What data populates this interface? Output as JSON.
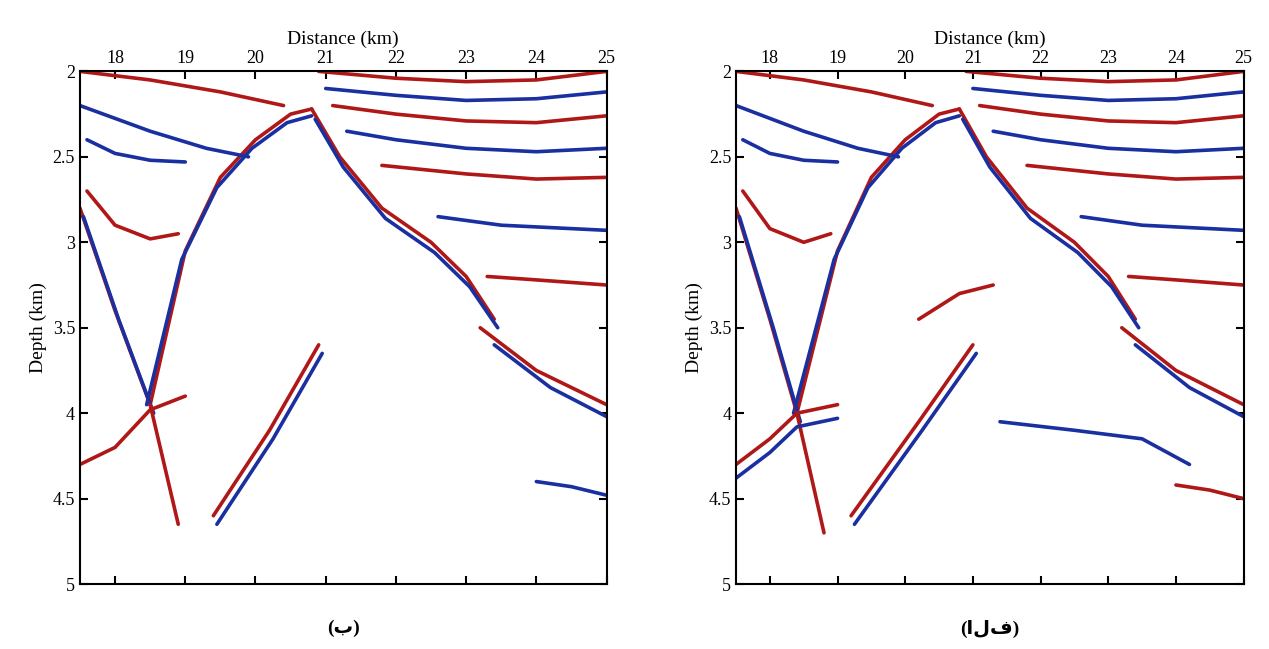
{
  "chart_data": [
    {
      "type": "line",
      "title": "(ب)",
      "xlabel": "Distance (km)",
      "ylabel": "Depth (km)",
      "xlim": [
        17.5,
        25
      ],
      "ylim": [
        5,
        2
      ],
      "xticks": [
        18,
        19,
        20,
        21,
        22,
        23,
        24,
        25
      ],
      "yticks": [
        2,
        2.5,
        3,
        3.5,
        4,
        4.5,
        5
      ],
      "series": [
        {
          "color": "#b01818",
          "x": [
            18.5,
            19.0,
            19.5,
            20.0,
            20.5,
            20.8
          ],
          "values": [
            3.95,
            3.05,
            2.62,
            2.4,
            2.25,
            2.22
          ]
        },
        {
          "color": "#1a2fa0",
          "x": [
            18.45,
            18.95,
            19.45,
            19.95,
            20.45,
            20.8
          ],
          "values": [
            3.95,
            3.1,
            2.68,
            2.45,
            2.3,
            2.26
          ]
        },
        {
          "color": "#b01818",
          "x": [
            20.8,
            21.2,
            21.8,
            22.5,
            23.0,
            23.4
          ],
          "values": [
            2.22,
            2.5,
            2.8,
            3.0,
            3.2,
            3.45
          ]
        },
        {
          "color": "#1a2fa0",
          "x": [
            20.85,
            21.25,
            21.85,
            22.55,
            23.05,
            23.45
          ],
          "values": [
            2.28,
            2.56,
            2.86,
            3.06,
            3.26,
            3.5
          ]
        },
        {
          "color": "#b01818",
          "x": [
            20.9,
            22.0,
            23.0,
            24.0,
            25.0
          ],
          "values": [
            2.0,
            2.04,
            2.06,
            2.05,
            2.0
          ]
        },
        {
          "color": "#1a2fa0",
          "x": [
            21.0,
            22.0,
            23.0,
            24.0,
            25.0
          ],
          "values": [
            2.1,
            2.14,
            2.17,
            2.16,
            2.12
          ]
        },
        {
          "color": "#b01818",
          "x": [
            21.1,
            22.0,
            23.0,
            24.0,
            25.0
          ],
          "values": [
            2.2,
            2.25,
            2.29,
            2.3,
            2.26
          ]
        },
        {
          "color": "#1a2fa0",
          "x": [
            21.3,
            22.0,
            23.0,
            24.0,
            25.0
          ],
          "values": [
            2.35,
            2.4,
            2.45,
            2.47,
            2.45
          ]
        },
        {
          "color": "#b01818",
          "x": [
            21.8,
            23.0,
            24.0,
            25.0
          ],
          "values": [
            2.55,
            2.6,
            2.63,
            2.62
          ]
        },
        {
          "color": "#1a2fa0",
          "x": [
            22.6,
            23.5,
            25.0
          ],
          "values": [
            2.85,
            2.9,
            2.93
          ]
        },
        {
          "color": "#b01818",
          "x": [
            23.3,
            24.0,
            25.0
          ],
          "values": [
            3.2,
            3.22,
            3.25
          ]
        },
        {
          "color": "#b01818",
          "x": [
            17.5,
            18.5,
            19.5,
            20.4
          ],
          "values": [
            2.0,
            2.05,
            2.12,
            2.2
          ]
        },
        {
          "color": "#1a2fa0",
          "x": [
            17.5,
            18.5,
            19.3,
            19.9
          ],
          "values": [
            2.2,
            2.35,
            2.45,
            2.5
          ]
        },
        {
          "color": "#1a2fa0",
          "x": [
            17.6,
            18.0,
            18.5,
            19.0
          ],
          "values": [
            2.4,
            2.48,
            2.52,
            2.53
          ]
        },
        {
          "color": "#b01818",
          "x": [
            17.6,
            18.0,
            18.5,
            18.9
          ],
          "values": [
            2.7,
            2.9,
            2.98,
            2.95
          ]
        },
        {
          "color": "#b01818",
          "x": [
            17.5,
            18.0,
            18.5
          ],
          "values": [
            2.8,
            3.4,
            3.95
          ]
        },
        {
          "color": "#1a2fa0",
          "x": [
            17.55,
            18.05,
            18.55
          ],
          "values": [
            2.85,
            3.45,
            4.0
          ]
        },
        {
          "color": "#b01818",
          "x": [
            18.5,
            18.7,
            18.9
          ],
          "values": [
            3.95,
            4.3,
            4.65
          ]
        },
        {
          "color": "#b01818",
          "x": [
            17.5,
            18.0,
            18.5,
            19.0
          ],
          "values": [
            4.3,
            4.2,
            3.98,
            3.9
          ]
        },
        {
          "color": "#b01818",
          "x": [
            19.4,
            20.2,
            20.9
          ],
          "values": [
            4.6,
            4.1,
            3.6
          ]
        },
        {
          "color": "#1a2fa0",
          "x": [
            19.45,
            20.25,
            20.95
          ],
          "values": [
            4.65,
            4.15,
            3.65
          ]
        },
        {
          "color": "#b01818",
          "x": [
            23.2,
            24.0,
            25.0
          ],
          "values": [
            3.5,
            3.75,
            3.95
          ]
        },
        {
          "color": "#1a2fa0",
          "x": [
            23.4,
            24.2,
            25.0
          ],
          "values": [
            3.6,
            3.85,
            4.02
          ]
        },
        {
          "color": "#1a2fa0",
          "x": [
            24.0,
            24.5,
            25.0
          ],
          "values": [
            4.4,
            4.43,
            4.48
          ]
        }
      ]
    },
    {
      "type": "line",
      "title": "(الف)",
      "xlabel": "Distance (km)",
      "ylabel": "Depth (km)",
      "xlim": [
        17.5,
        25
      ],
      "ylim": [
        5,
        2
      ],
      "xticks": [
        18,
        19,
        20,
        21,
        22,
        23,
        24,
        25
      ],
      "yticks": [
        2,
        2.5,
        3,
        3.5,
        4,
        4.5,
        5
      ],
      "series": [
        {
          "color": "#b01818",
          "x": [
            18.4,
            19.0,
            19.5,
            20.0,
            20.5,
            20.8
          ],
          "values": [
            4.0,
            3.05,
            2.62,
            2.4,
            2.25,
            2.22
          ]
        },
        {
          "color": "#1a2fa0",
          "x": [
            18.35,
            18.95,
            19.45,
            19.95,
            20.45,
            20.8
          ],
          "values": [
            4.0,
            3.1,
            2.68,
            2.45,
            2.3,
            2.26
          ]
        },
        {
          "color": "#b01818",
          "x": [
            20.8,
            21.2,
            21.8,
            22.5,
            23.0,
            23.4
          ],
          "values": [
            2.22,
            2.5,
            2.8,
            3.0,
            3.2,
            3.45
          ]
        },
        {
          "color": "#1a2fa0",
          "x": [
            20.85,
            21.25,
            21.85,
            22.55,
            23.05,
            23.45
          ],
          "values": [
            2.28,
            2.56,
            2.86,
            3.06,
            3.26,
            3.5
          ]
        },
        {
          "color": "#b01818",
          "x": [
            20.9,
            22.0,
            23.0,
            24.0,
            25.0
          ],
          "values": [
            2.0,
            2.04,
            2.06,
            2.05,
            2.0
          ]
        },
        {
          "color": "#1a2fa0",
          "x": [
            21.0,
            22.0,
            23.0,
            24.0,
            25.0
          ],
          "values": [
            2.1,
            2.14,
            2.17,
            2.16,
            2.12
          ]
        },
        {
          "color": "#b01818",
          "x": [
            21.1,
            22.0,
            23.0,
            24.0,
            25.0
          ],
          "values": [
            2.2,
            2.25,
            2.29,
            2.3,
            2.26
          ]
        },
        {
          "color": "#1a2fa0",
          "x": [
            21.3,
            22.0,
            23.0,
            24.0,
            25.0
          ],
          "values": [
            2.35,
            2.4,
            2.45,
            2.47,
            2.45
          ]
        },
        {
          "color": "#b01818",
          "x": [
            21.8,
            23.0,
            24.0,
            25.0
          ],
          "values": [
            2.55,
            2.6,
            2.63,
            2.62
          ]
        },
        {
          "color": "#1a2fa0",
          "x": [
            22.6,
            23.5,
            25.0
          ],
          "values": [
            2.85,
            2.9,
            2.93
          ]
        },
        {
          "color": "#b01818",
          "x": [
            23.3,
            24.0,
            25.0
          ],
          "values": [
            3.2,
            3.22,
            3.25
          ]
        },
        {
          "color": "#b01818",
          "x": [
            17.5,
            18.5,
            19.5,
            20.4
          ],
          "values": [
            2.0,
            2.05,
            2.12,
            2.2
          ]
        },
        {
          "color": "#1a2fa0",
          "x": [
            17.5,
            18.5,
            19.3,
            19.9
          ],
          "values": [
            2.2,
            2.35,
            2.45,
            2.5
          ]
        },
        {
          "color": "#1a2fa0",
          "x": [
            17.6,
            18.0,
            18.5,
            19.0
          ],
          "values": [
            2.4,
            2.48,
            2.52,
            2.53
          ]
        },
        {
          "color": "#b01818",
          "x": [
            17.6,
            18.0,
            18.5,
            18.9
          ],
          "values": [
            2.7,
            2.92,
            3.0,
            2.95
          ]
        },
        {
          "color": "#b01818",
          "x": [
            17.5,
            18.0,
            18.4
          ],
          "values": [
            2.8,
            3.45,
            4.0
          ]
        },
        {
          "color": "#1a2fa0",
          "x": [
            17.55,
            18.05,
            18.45
          ],
          "values": [
            2.85,
            3.5,
            4.05
          ]
        },
        {
          "color": "#b01818",
          "x": [
            18.4,
            18.6,
            18.8
          ],
          "values": [
            4.0,
            4.35,
            4.7
          ]
        },
        {
          "color": "#b01818",
          "x": [
            17.5,
            18.0,
            18.4,
            19.0
          ],
          "values": [
            4.3,
            4.15,
            4.0,
            3.95
          ]
        },
        {
          "color": "#1a2fa0",
          "x": [
            17.5,
            18.0,
            18.4,
            19.0
          ],
          "values": [
            4.38,
            4.23,
            4.08,
            4.03
          ]
        },
        {
          "color": "#b01818",
          "x": [
            19.2,
            20.2,
            21.0
          ],
          "values": [
            4.6,
            4.05,
            3.6
          ]
        },
        {
          "color": "#1a2fa0",
          "x": [
            19.25,
            20.25,
            21.05
          ],
          "values": [
            4.65,
            4.1,
            3.65
          ]
        },
        {
          "color": "#b01818",
          "x": [
            20.2,
            20.8,
            21.3
          ],
          "values": [
            3.45,
            3.3,
            3.25
          ]
        },
        {
          "color": "#1a2fa0",
          "x": [
            21.4,
            22.5,
            23.5,
            24.2
          ],
          "values": [
            4.05,
            4.1,
            4.15,
            4.3
          ]
        },
        {
          "color": "#b01818",
          "x": [
            23.2,
            24.0,
            25.0
          ],
          "values": [
            3.5,
            3.75,
            3.95
          ]
        },
        {
          "color": "#1a2fa0",
          "x": [
            23.4,
            24.2,
            25.0
          ],
          "values": [
            3.6,
            3.85,
            4.02
          ]
        },
        {
          "color": "#b01818",
          "x": [
            24.0,
            24.5,
            25.0
          ],
          "values": [
            4.42,
            4.45,
            4.5
          ]
        }
      ]
    }
  ]
}
